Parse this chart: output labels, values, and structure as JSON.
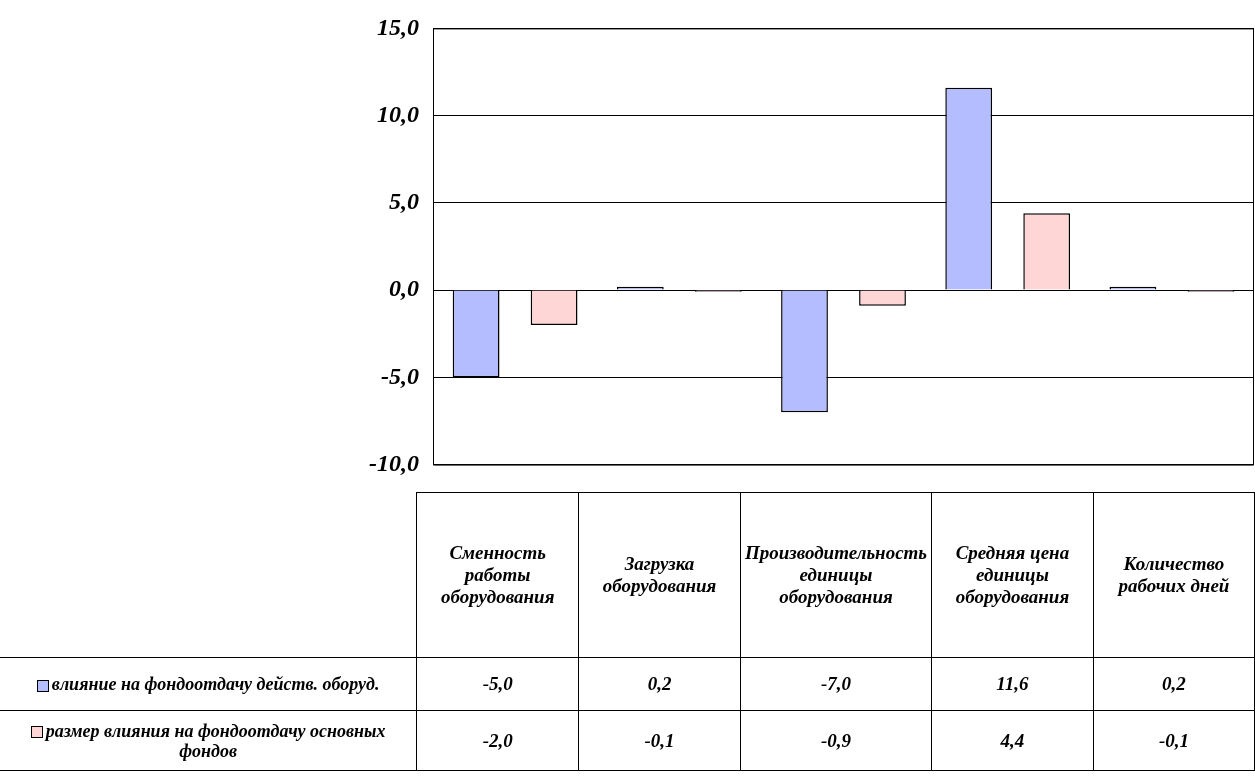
{
  "chart_data": {
    "type": "bar",
    "categories": [
      "Сменность работы оборудования",
      "Загрузка оборудования",
      "Производительность единицы оборудования",
      "Средняя цена единицы оборудования",
      "Количество рабочих дней"
    ],
    "series": [
      {
        "name": "влияние на фондоотдачу действ. оборуд.",
        "color": "#b3bdff",
        "values": [
          -5.0,
          0.2,
          -7.0,
          11.6,
          0.2
        ],
        "value_labels": [
          "-5,0",
          "0,2",
          "-7,0",
          "11,6",
          "0,2"
        ]
      },
      {
        "name": "размер влияния на фондоотдачу основных фондов",
        "color": "#ffd6d6",
        "values": [
          -2.0,
          -0.1,
          -0.9,
          4.4,
          -0.1
        ],
        "value_labels": [
          "-2,0",
          "-0,1",
          "-0,9",
          "4,4",
          "-0,1"
        ]
      }
    ],
    "ylim": [
      -10,
      15
    ],
    "yticks": [
      {
        "value": -10,
        "label": "-10,0"
      },
      {
        "value": -5,
        "label": "-5,0"
      },
      {
        "value": 0,
        "label": "0,0"
      },
      {
        "value": 5,
        "label": "5,0"
      },
      {
        "value": 10,
        "label": "10,0"
      },
      {
        "value": 15,
        "label": "15,0"
      }
    ],
    "grid": "y",
    "legend": "bottom"
  }
}
